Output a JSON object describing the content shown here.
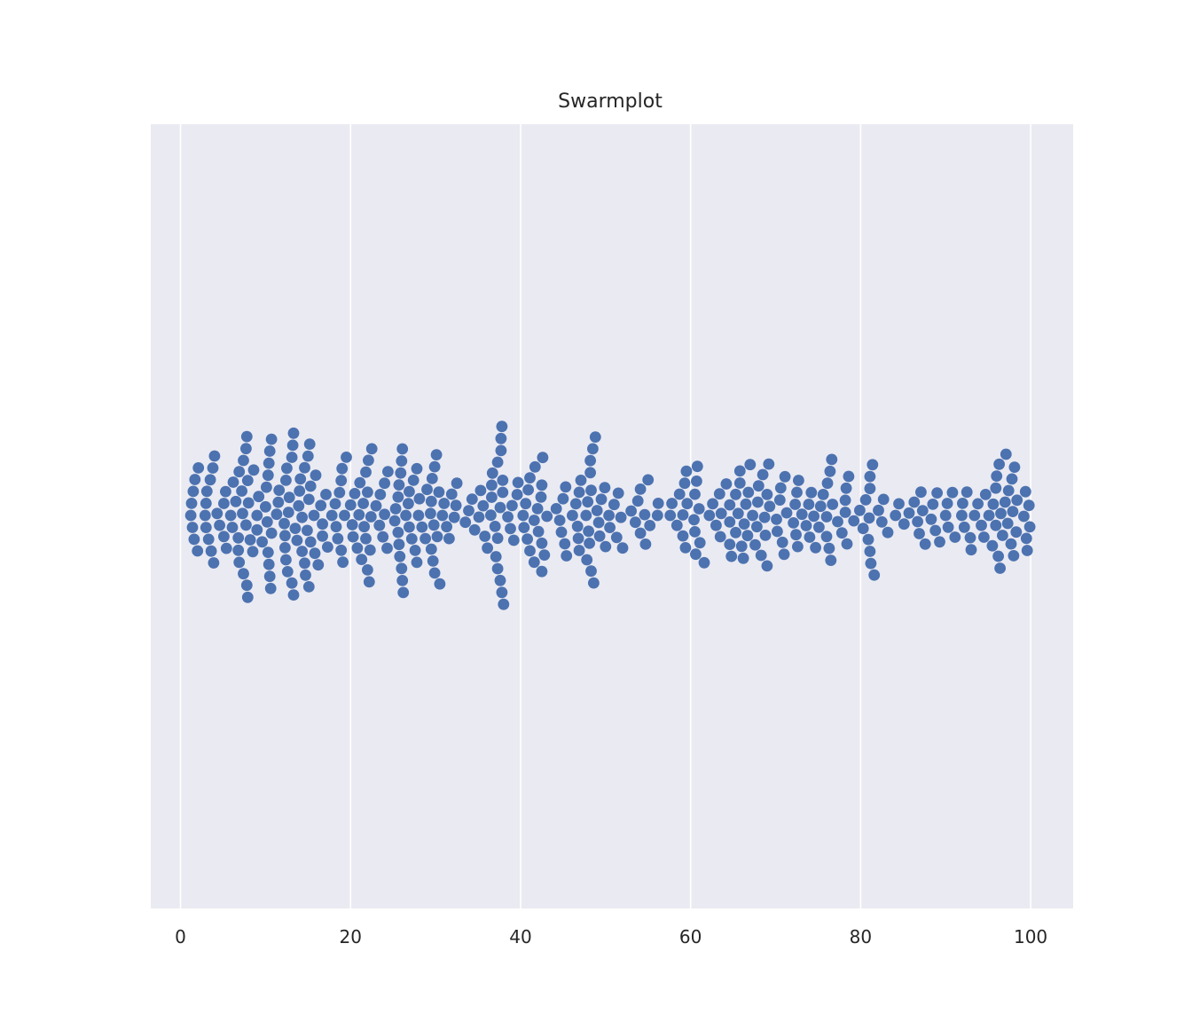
{
  "chart_data": {
    "type": "scatter",
    "subtype": "swarm",
    "title": "Swarmplot",
    "xlabel": "",
    "ylabel": "",
    "xlim": [
      -3.5,
      105
    ],
    "xticks": [
      0,
      20,
      40,
      60,
      80,
      100
    ],
    "xtick_labels": [
      "0",
      "20",
      "40",
      "60",
      "80",
      "100"
    ],
    "grid": true,
    "orientation": "horizontal",
    "colors": {
      "background": "#eaeaf2",
      "grid": "#ffffff",
      "marker": "#4c72b0",
      "text": "#262626"
    },
    "x": [
      1.2,
      1.3,
      1.4,
      1.5,
      1.6,
      1.7,
      2.0,
      2.1,
      2.9,
      3.0,
      3.0,
      3.1,
      3.3,
      3.5,
      3.6,
      3.8,
      3.9,
      4.0,
      4.3,
      4.6,
      5.1,
      5.1,
      5.3,
      5.4,
      5.9,
      6.1,
      6.2,
      6.5,
      6.8,
      6.8,
      6.9,
      6.9,
      7.2,
      7.3,
      7.4,
      7.4,
      7.7,
      7.7,
      7.8,
      7.8,
      7.9,
      7.9,
      8.0,
      8.2,
      8.5,
      8.6,
      9.0,
      9.0,
      9.2,
      9.6,
      10.0,
      10.1,
      10.2,
      10.3,
      10.3,
      10.4,
      10.4,
      10.5,
      10.5,
      10.6,
      10.7,
      10.7,
      11.3,
      11.5,
      11.6,
      12.2,
      12.3,
      12.3,
      12.4,
      12.4,
      12.5,
      12.6,
      12.7,
      12.8,
      13.1,
      13.1,
      13.2,
      13.3,
      13.3,
      13.5,
      13.7,
      13.9,
      14.0,
      14.1,
      14.3,
      14.3,
      14.6,
      14.6,
      14.7,
      14.9,
      15.0,
      15.1,
      15.1,
      15.2,
      15.3,
      15.3,
      15.7,
      15.8,
      15.9,
      16.2,
      16.5,
      16.7,
      16.7,
      17.1,
      17.3,
      17.8,
      18.2,
      18.3,
      18.5,
      18.7,
      18.9,
      18.9,
      19.0,
      19.1,
      19.3,
      19.5,
      20.0,
      20.2,
      20.3,
      20.5,
      20.8,
      21.0,
      21.1,
      21.3,
      21.5,
      21.6,
      21.8,
      21.8,
      22.0,
      22.0,
      22.1,
      22.2,
      22.3,
      22.4,
      22.5,
      23.0,
      23.4,
      23.5,
      23.8,
      24.0,
      24.0,
      24.3,
      24.4,
      25.2,
      25.3,
      25.6,
      25.6,
      25.7,
      25.7,
      25.8,
      25.9,
      26.0,
      26.0,
      26.1,
      26.1,
      26.2,
      26.5,
      26.8,
      26.9,
      26.9,
      27.2,
      27.4,
      27.6,
      27.8,
      27.8,
      28.0,
      28.1,
      28.4,
      28.8,
      29.0,
      29.4,
      29.5,
      29.5,
      29.6,
      29.7,
      29.8,
      29.9,
      29.9,
      30.1,
      30.2,
      30.4,
      30.5,
      30.8,
      31.0,
      31.3,
      31.6,
      31.9,
      32.2,
      32.4,
      32.5,
      33.5,
      33.9,
      34.3,
      34.6,
      35.1,
      35.3,
      35.6,
      35.8,
      36.1,
      36.5,
      36.6,
      36.6,
      36.7,
      37.0,
      37.1,
      37.3,
      37.3,
      37.3,
      37.6,
      37.6,
      37.7,
      37.7,
      37.8,
      37.8,
      37.9,
      37.9,
      38.0,
      38.5,
      38.8,
      39.0,
      39.2,
      39.6,
      39.7,
      40.3,
      40.4,
      40.6,
      40.8,
      40.9,
      41.1,
      41.1,
      41.6,
      41.6,
      41.7,
      42.0,
      42.1,
      42.4,
      42.5,
      42.5,
      42.5,
      42.6,
      42.8,
      43.1,
      44.2,
      44.6,
      44.8,
      45.0,
      45.2,
      45.3,
      45.4,
      46.1,
      46.5,
      46.7,
      46.8,
      46.9,
      46.9,
      47.1,
      47.7,
      47.8,
      47.9,
      48.0,
      48.1,
      48.2,
      48.2,
      48.3,
      48.3,
      48.5,
      48.6,
      48.8,
      49.0,
      49.2,
      49.3,
      49.5,
      49.9,
      50.0,
      50.4,
      50.5,
      51.0,
      51.3,
      51.5,
      51.8,
      52.0,
      53.0,
      53.5,
      53.8,
      54.1,
      54.1,
      54.6,
      54.7,
      55.0,
      55.2,
      56.1,
      56.2,
      57.6,
      57.8,
      58.4,
      58.7,
      59.1,
      59.1,
      59.3,
      59.4,
      59.5,
      59.6,
      60.4,
      60.5,
      60.5,
      60.6,
      60.7,
      60.8,
      61.0,
      61.1,
      61.6,
      62.2,
      62.6,
      63.0,
      63.4,
      63.5,
      63.6,
      64.2,
      64.6,
      64.6,
      64.6,
      64.8,
      65.3,
      65.3,
      65.6,
      65.8,
      65.8,
      66.0,
      66.2,
      66.3,
      66.5,
      66.7,
      66.8,
      67.0,
      67.3,
      67.6,
      67.8,
      67.9,
      68.0,
      68.3,
      68.5,
      68.7,
      68.8,
      69.0,
      69.0,
      69.2,
      69.3,
      70.1,
      70.2,
      70.5,
      70.6,
      70.8,
      71.0,
      71.1,
      71.3,
      72.1,
      72.3,
      72.4,
      72.5,
      72.6,
      72.7,
      73.1,
      73.6,
      73.9,
      74.0,
      74.2,
      74.5,
      74.7,
      75.1,
      75.3,
      75.6,
      76.0,
      76.0,
      76.1,
      76.3,
      76.4,
      76.5,
      76.6,
      76.7,
      77.3,
      77.8,
      78.2,
      78.2,
      78.3,
      78.4,
      78.6,
      79.2,
      79.9,
      80.3,
      80.6,
      80.9,
      81.0,
      81.1,
      81.1,
      81.1,
      81.2,
      81.4,
      81.6,
      82.1,
      82.5,
      82.7,
      83.2,
      84.1,
      84.5,
      85.1,
      85.7,
      86.3,
      86.7,
      86.9,
      87.1,
      87.3,
      87.6,
      88.3,
      88.5,
      88.8,
      89.0,
      89.3,
      90.0,
      90.2,
      90.3,
      90.8,
      91.1,
      91.9,
      92.0,
      92.2,
      92.5,
      92.9,
      93.0,
      93.4,
      93.8,
      94.2,
      94.5,
      94.7,
      95.1,
      95.5,
      95.6,
      95.9,
      95.9,
      96.0,
      96.2,
      96.3,
      96.4,
      96.5,
      96.7,
      97.0,
      97.1,
      97.3,
      97.4,
      97.7,
      97.8,
      97.9,
      98.0,
      98.1,
      98.3,
      98.4,
      99.2,
      99.4,
      99.5,
      99.6,
      99.8,
      99.9
    ]
  }
}
